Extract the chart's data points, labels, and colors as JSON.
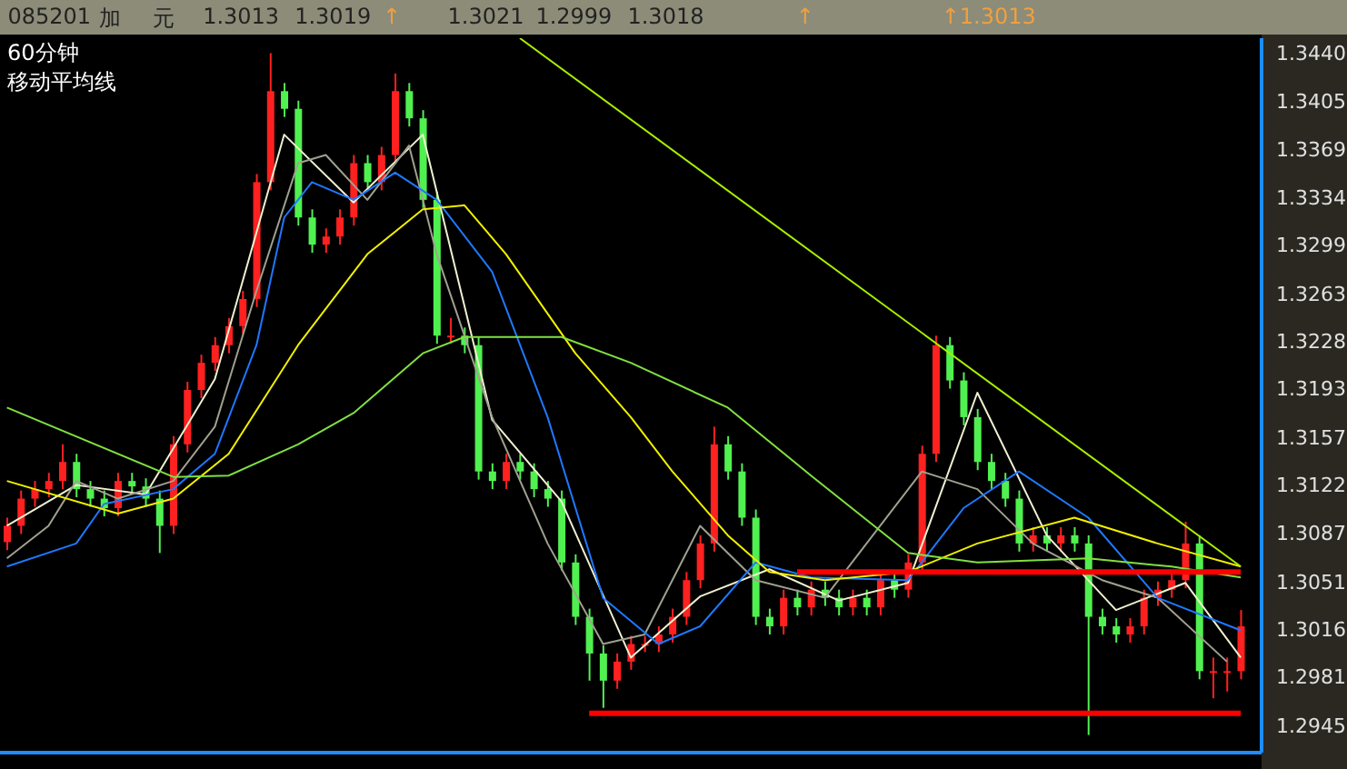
{
  "chart_data": {
    "type": "candlestick",
    "title": "60分钟",
    "subtitle": "移动平均线",
    "annotations": [
      "085201",
      "加",
      "元",
      "1.3013",
      "1.3019",
      "↑",
      "1.3021",
      "1.2999",
      "1.3018",
      "↑",
      "↑1.3013"
    ],
    "categories": [
      null,
      null,
      null,
      null,
      null,
      null,
      null,
      null,
      null,
      null,
      null,
      null,
      null,
      null,
      null,
      null,
      null,
      null,
      null,
      null,
      null,
      null,
      null,
      null,
      null,
      null,
      null,
      null,
      null,
      null,
      null,
      null,
      null,
      null,
      null,
      null,
      null,
      null,
      null,
      null,
      null,
      null,
      null,
      null,
      null,
      null,
      null,
      null,
      null,
      null,
      null,
      null,
      null,
      null,
      null,
      null,
      null,
      null,
      null,
      null,
      null,
      null,
      null,
      null,
      null,
      null,
      null,
      null,
      null,
      null,
      null,
      null,
      null,
      null,
      null,
      null,
      null,
      null,
      null,
      null,
      null,
      null,
      null,
      null,
      null,
      null,
      null,
      null,
      null,
      null
    ],
    "ohlc": [
      [
        1.308,
        1.3098,
        1.3074,
        1.3092
      ],
      [
        1.3092,
        1.3118,
        1.3086,
        1.3112
      ],
      [
        1.3112,
        1.3125,
        1.3106,
        1.3119
      ],
      [
        1.3119,
        1.3131,
        1.3113,
        1.3125
      ],
      [
        1.3125,
        1.3152,
        1.3119,
        1.3139
      ],
      [
        1.3139,
        1.3145,
        1.3113,
        1.3119
      ],
      [
        1.3119,
        1.3125,
        1.3106,
        1.3112
      ],
      [
        1.3112,
        1.3118,
        1.3099,
        1.3105
      ],
      [
        1.3105,
        1.3131,
        1.3099,
        1.3125
      ],
      [
        1.3125,
        1.3131,
        1.3115,
        1.3121
      ],
      [
        1.3121,
        1.3127,
        1.3106,
        1.3112
      ],
      [
        1.3112,
        1.3118,
        1.3072,
        1.3092
      ],
      [
        1.3092,
        1.3158,
        1.3086,
        1.3152
      ],
      [
        1.3152,
        1.3198,
        1.3146,
        1.3192
      ],
      [
        1.3192,
        1.3218,
        1.3186,
        1.3212
      ],
      [
        1.3212,
        1.3231,
        1.3206,
        1.3225
      ],
      [
        1.3225,
        1.3245,
        1.3219,
        1.3239
      ],
      [
        1.3239,
        1.3265,
        1.3233,
        1.3259
      ],
      [
        1.3259,
        1.3351,
        1.3253,
        1.3345
      ],
      [
        1.3345,
        1.344,
        1.3339,
        1.3412
      ],
      [
        1.3412,
        1.3418,
        1.3393,
        1.3399
      ],
      [
        1.3399,
        1.3405,
        1.3313,
        1.3319
      ],
      [
        1.3319,
        1.3325,
        1.3293,
        1.3299
      ],
      [
        1.3299,
        1.3311,
        1.3293,
        1.3305
      ],
      [
        1.3305,
        1.3325,
        1.3299,
        1.3319
      ],
      [
        1.3319,
        1.3365,
        1.3313,
        1.3359
      ],
      [
        1.3359,
        1.3365,
        1.3339,
        1.3345
      ],
      [
        1.3345,
        1.3371,
        1.3339,
        1.3365
      ],
      [
        1.3365,
        1.3425,
        1.3359,
        1.3412
      ],
      [
        1.3412,
        1.3418,
        1.3386,
        1.3392
      ],
      [
        1.3392,
        1.3398,
        1.3326,
        1.3332
      ],
      [
        1.3332,
        1.3338,
        1.3226,
        1.3232
      ],
      [
        1.3232,
        1.3245,
        1.3226,
        1.3232
      ],
      [
        1.3232,
        1.3238,
        1.3219,
        1.3225
      ],
      [
        1.3225,
        1.3231,
        1.3126,
        1.3132
      ],
      [
        1.3132,
        1.3138,
        1.3119,
        1.3125
      ],
      [
        1.3125,
        1.3145,
        1.3119,
        1.3139
      ],
      [
        1.3139,
        1.3145,
        1.3126,
        1.3132
      ],
      [
        1.3132,
        1.3138,
        1.3113,
        1.3119
      ],
      [
        1.3119,
        1.3125,
        1.3106,
        1.3112
      ],
      [
        1.3112,
        1.3118,
        1.3059,
        1.3065
      ],
      [
        1.3065,
        1.3071,
        1.3019,
        1.3025
      ],
      [
        1.3025,
        1.3031,
        1.2978,
        1.2998
      ],
      [
        1.2998,
        1.3004,
        1.2958,
        1.2978
      ],
      [
        1.2978,
        1.2998,
        1.2972,
        1.2992
      ],
      [
        1.2992,
        1.3011,
        1.2986,
        1.3005
      ],
      [
        1.3005,
        1.3011,
        1.2999,
        1.3005
      ],
      [
        1.3005,
        1.3018,
        1.2999,
        1.3012
      ],
      [
        1.3012,
        1.3031,
        1.3006,
        1.3025
      ],
      [
        1.3025,
        1.3058,
        1.3019,
        1.3052
      ],
      [
        1.3052,
        1.3085,
        1.3046,
        1.3079
      ],
      [
        1.3079,
        1.3165,
        1.3073,
        1.3152
      ],
      [
        1.3152,
        1.3158,
        1.3126,
        1.3132
      ],
      [
        1.3132,
        1.3138,
        1.3092,
        1.3098
      ],
      [
        1.3098,
        1.3104,
        1.3019,
        1.3025
      ],
      [
        1.3025,
        1.3031,
        1.3012,
        1.3018
      ],
      [
        1.3018,
        1.3045,
        1.3012,
        1.3039
      ],
      [
        1.3039,
        1.3045,
        1.3026,
        1.3032
      ],
      [
        1.3032,
        1.3051,
        1.3026,
        1.3045
      ],
      [
        1.3045,
        1.3051,
        1.3033,
        1.3039
      ],
      [
        1.3039,
        1.3045,
        1.3026,
        1.3032
      ],
      [
        1.3032,
        1.3045,
        1.3026,
        1.3039
      ],
      [
        1.3039,
        1.3045,
        1.3026,
        1.3032
      ],
      [
        1.3032,
        1.3058,
        1.3026,
        1.3052
      ],
      [
        1.3052,
        1.3058,
        1.3039,
        1.3045
      ],
      [
        1.3045,
        1.3071,
        1.3039,
        1.3065
      ],
      [
        1.3065,
        1.3151,
        1.3059,
        1.3145
      ],
      [
        1.3145,
        1.3232,
        1.3139,
        1.3225
      ],
      [
        1.3225,
        1.3231,
        1.3193,
        1.3199
      ],
      [
        1.3199,
        1.3205,
        1.3166,
        1.3172
      ],
      [
        1.3172,
        1.3178,
        1.3133,
        1.3139
      ],
      [
        1.3139,
        1.3145,
        1.3119,
        1.3125
      ],
      [
        1.3125,
        1.3131,
        1.3106,
        1.3112
      ],
      [
        1.3112,
        1.3118,
        1.3073,
        1.3079
      ],
      [
        1.3079,
        1.3091,
        1.3073,
        1.3085
      ],
      [
        1.3085,
        1.3091,
        1.3073,
        1.3079
      ],
      [
        1.3079,
        1.3091,
        1.3073,
        1.3085
      ],
      [
        1.3085,
        1.3091,
        1.3073,
        1.3079
      ],
      [
        1.3079,
        1.3085,
        1.2938,
        1.3025
      ],
      [
        1.3025,
        1.3031,
        1.3012,
        1.3018
      ],
      [
        1.3018,
        1.3024,
        1.3006,
        1.3012
      ],
      [
        1.3012,
        1.3024,
        1.3006,
        1.3018
      ],
      [
        1.3018,
        1.3045,
        1.3012,
        1.3039
      ],
      [
        1.3039,
        1.3051,
        1.3033,
        1.3045
      ],
      [
        1.3045,
        1.3058,
        1.3039,
        1.3052
      ],
      [
        1.3052,
        1.3095,
        1.3046,
        1.3079
      ],
      [
        1.3079,
        1.3085,
        1.2979,
        1.2985
      ],
      [
        1.2985,
        1.2995,
        1.2965,
        1.2985
      ],
      [
        1.2985,
        1.2995,
        1.297,
        1.2985
      ],
      [
        1.2985,
        1.303,
        1.2979,
        1.3018
      ]
    ],
    "colors": [
      "#ff2020",
      "#ff2020",
      "#ff2020",
      "#ff2020",
      "#ff2020",
      "#50f050",
      "#50f050",
      "#50f050",
      "#ff2020",
      "#50f050",
      "#50f050",
      "#50f050",
      "#ff2020",
      "#ff2020",
      "#ff2020",
      "#ff2020",
      "#ff2020",
      "#ff2020",
      "#ff2020",
      "#ff2020",
      "#50f050",
      "#50f050",
      "#50f050",
      "#ff2020",
      "#ff2020",
      "#ff2020",
      "#50f050",
      "#ff2020",
      "#ff2020",
      "#50f050",
      "#50f050",
      "#50f050",
      "#ff2020",
      "#50f050",
      "#50f050",
      "#50f050",
      "#ff2020",
      "#50f050",
      "#50f050",
      "#50f050",
      "#50f050",
      "#50f050",
      "#50f050",
      "#50f050",
      "#ff2020",
      "#ff2020",
      "#ff2020",
      "#ff2020",
      "#ff2020",
      "#ff2020",
      "#ff2020",
      "#ff2020",
      "#50f050",
      "#50f050",
      "#50f050",
      "#50f050",
      "#ff2020",
      "#50f050",
      "#ff2020",
      "#50f050",
      "#50f050",
      "#ff2020",
      "#50f050",
      "#ff2020",
      "#50f050",
      "#ff2020",
      "#ff2020",
      "#ff2020",
      "#50f050",
      "#50f050",
      "#50f050",
      "#50f050",
      "#50f050",
      "#50f050",
      "#ff2020",
      "#50f050",
      "#ff2020",
      "#50f050",
      "#50f050",
      "#50f050",
      "#50f050",
      "#ff2020",
      "#ff2020",
      "#ff2020",
      "#ff2020",
      "#ff2020",
      "#50f050",
      "#ff2020",
      "#ff2020",
      "#ff2020"
    ],
    "series": [
      {
        "type": "line",
        "color": "#f0f0d0",
        "values": [
          1.3092,
          null,
          null,
          null,
          null,
          1.3122,
          null,
          null,
          null,
          null,
          1.3115,
          null,
          null,
          null,
          null,
          1.32,
          null,
          null,
          null,
          null,
          1.338,
          null,
          null,
          null,
          null,
          1.333,
          null,
          null,
          null,
          null,
          1.338,
          null,
          null,
          null,
          null,
          1.317,
          null,
          null,
          null,
          null,
          1.311,
          null,
          null,
          null,
          null,
          1.2995,
          null,
          null,
          null,
          null,
          1.304,
          null,
          null,
          null,
          null,
          1.306,
          null,
          null,
          null,
          null,
          1.3037,
          null,
          null,
          null,
          null,
          1.305,
          null,
          null,
          null,
          null,
          1.319,
          null,
          null,
          null,
          null,
          1.3085,
          null,
          null,
          null,
          null,
          1.303,
          null,
          null,
          null,
          null,
          1.305,
          null,
          null,
          null,
          1.2995
        ]
      },
      {
        "type": "line",
        "color": "#a0a090",
        "values": [
          1.3068,
          null,
          null,
          1.3092,
          null,
          1.3125,
          null,
          null,
          1.3112,
          null,
          null,
          null,
          1.3125,
          null,
          null,
          1.3165,
          null,
          null,
          1.3265,
          null,
          null,
          1.3359,
          null,
          1.3365,
          null,
          null,
          1.3332,
          null,
          null,
          1.3372,
          null,
          1.3292,
          null,
          null,
          null,
          1.3172,
          null,
          null,
          null,
          1.3079,
          null,
          null,
          null,
          1.3005,
          null,
          null,
          1.3012,
          null,
          null,
          null,
          1.3092,
          null,
          null,
          null,
          1.3052,
          null,
          null,
          null,
          null,
          1.3039,
          null,
          null,
          null,
          null,
          null,
          null,
          1.3132,
          null,
          null,
          null,
          1.3119,
          null,
          null,
          null,
          1.3079,
          null,
          null,
          null,
          null,
          1.3052,
          null,
          null,
          null,
          1.3039,
          null,
          null,
          null,
          null,
          1.2992,
          null
        ]
      },
      {
        "type": "line",
        "color": "#1e78ff",
        "values": [
          1.3062,
          null,
          null,
          null,
          null,
          1.3079,
          null,
          1.3108,
          null,
          null,
          null,
          null,
          1.3119,
          null,
          null,
          1.3145,
          null,
          null,
          1.3225,
          null,
          1.3319,
          null,
          1.3345,
          null,
          null,
          1.3332,
          null,
          null,
          1.3352,
          null,
          null,
          1.3332,
          null,
          null,
          null,
          1.3279,
          null,
          null,
          null,
          1.3172,
          null,
          null,
          null,
          1.3039,
          null,
          null,
          null,
          1.3005,
          null,
          null,
          1.3018,
          null,
          null,
          null,
          1.3065,
          null,
          null,
          null,
          1.3054,
          null,
          null,
          null,
          null,
          null,
          null,
          1.3052,
          null,
          null,
          null,
          1.3105,
          null,
          null,
          null,
          1.3132,
          null,
          null,
          null,
          null,
          1.3098,
          null,
          null,
          null,
          null,
          1.3039,
          null,
          null,
          null,
          null,
          null,
          1.3015
        ]
      },
      {
        "type": "line",
        "color": "#f0f000",
        "values": [
          1.3125,
          null,
          null,
          null,
          null,
          null,
          null,
          null,
          1.3101,
          null,
          null,
          null,
          1.3112,
          null,
          null,
          null,
          1.3145,
          null,
          null,
          null,
          null,
          1.3225,
          null,
          null,
          null,
          null,
          1.3292,
          null,
          null,
          null,
          1.3325,
          null,
          null,
          1.3328,
          null,
          null,
          1.3292,
          null,
          null,
          null,
          null,
          1.3219,
          null,
          null,
          null,
          1.3172,
          null,
          null,
          1.3132,
          null,
          null,
          null,
          1.3085,
          null,
          null,
          1.3058,
          null,
          null,
          null,
          1.3052,
          null,
          null,
          null,
          null,
          null,
          1.3058,
          null,
          null,
          null,
          null,
          1.3079,
          null,
          null,
          null,
          null,
          null,
          null,
          1.3098,
          null,
          null,
          null,
          null,
          null,
          1.3079,
          null,
          null,
          null,
          null,
          null,
          1.3062
        ]
      },
      {
        "type": "line",
        "color": "#80e040",
        "values": [
          1.3179,
          null,
          null,
          null,
          null,
          null,
          null,
          null,
          null,
          null,
          null,
          null,
          1.3128,
          null,
          null,
          null,
          1.3129,
          null,
          null,
          null,
          null,
          1.3152,
          null,
          null,
          null,
          1.3175,
          null,
          null,
          null,
          null,
          1.3219,
          null,
          null,
          1.3231,
          null,
          null,
          null,
          null,
          null,
          null,
          1.3231,
          null,
          null,
          null,
          null,
          1.3212,
          null,
          null,
          null,
          null,
          null,
          null,
          1.3179,
          null,
          null,
          null,
          null,
          null,
          1.3129,
          null,
          null,
          null,
          null,
          null,
          null,
          1.3072,
          null,
          null,
          null,
          null,
          1.3065,
          null,
          null,
          null,
          null,
          null,
          null,
          null,
          1.3068,
          null,
          null,
          null,
          null,
          null,
          1.3062,
          null,
          null,
          null,
          null,
          1.3054
        ]
      },
      {
        "type": "line",
        "color": "#a8f000",
        "values": [
          null,
          null,
          null,
          null,
          null,
          null,
          null,
          null,
          null,
          null,
          null,
          null,
          null,
          null,
          null,
          null,
          null,
          null,
          null,
          null,
          null,
          null,
          null,
          null,
          null,
          null,
          null,
          null,
          null,
          null,
          null,
          null,
          null,
          null,
          null,
          null,
          null,
          1.3451,
          null,
          null,
          null,
          null,
          null,
          null,
          null,
          null,
          null,
          null,
          null,
          null,
          null,
          null,
          null,
          null,
          null,
          null,
          null,
          null,
          null,
          null,
          null,
          null,
          null,
          null,
          null,
          null,
          null,
          null,
          null,
          null,
          null,
          null,
          null,
          null,
          null,
          null,
          null,
          null,
          null,
          null,
          null,
          null,
          null,
          null,
          null,
          null,
          null,
          null,
          null,
          1.3062
        ]
      },
      {
        "type": "line",
        "color": "#ff0000",
        "values": [
          null,
          null,
          null,
          null,
          null,
          null,
          null,
          null,
          null,
          null,
          null,
          null,
          null,
          null,
          null,
          null,
          null,
          null,
          null,
          null,
          null,
          null,
          null,
          null,
          null,
          null,
          null,
          null,
          null,
          null,
          null,
          null,
          null,
          null,
          null,
          null,
          null,
          null,
          null,
          null,
          null,
          null,
          null,
          null,
          null,
          null,
          null,
          null,
          null,
          null,
          null,
          null,
          null,
          null,
          null,
          null,
          null,
          1.3058,
          null,
          null,
          null,
          null,
          null,
          null,
          null,
          null,
          null,
          null,
          null,
          null,
          null,
          null,
          null,
          null,
          null,
          null,
          null,
          null,
          null,
          null,
          null,
          null,
          null,
          null,
          null,
          null,
          null,
          null,
          null,
          1.3058
        ]
      },
      {
        "type": "line",
        "color": "#ff0000",
        "values": [
          null,
          null,
          null,
          null,
          null,
          null,
          null,
          null,
          null,
          null,
          null,
          null,
          null,
          null,
          null,
          null,
          null,
          null,
          null,
          null,
          null,
          null,
          null,
          null,
          null,
          null,
          null,
          null,
          null,
          null,
          null,
          null,
          null,
          null,
          null,
          null,
          null,
          null,
          null,
          null,
          null,
          null,
          1.2954,
          null,
          null,
          null,
          null,
          null,
          null,
          null,
          null,
          null,
          null,
          null,
          null,
          null,
          null,
          null,
          null,
          null,
          null,
          null,
          null,
          null,
          null,
          null,
          null,
          null,
          null,
          null,
          null,
          null,
          null,
          null,
          null,
          null,
          null,
          null,
          null,
          null,
          null,
          null,
          null,
          null,
          null,
          null,
          null,
          null,
          null,
          1.2954
        ]
      }
    ],
    "ylim": [
      1.2925,
      1.3451
    ],
    "yticks": [
      {
        "value": 1.344,
        "label": "1.3440"
      },
      1.3405,
      1.3369,
      1.3334,
      1.3299,
      1.3263,
      1.3228,
      1.3193,
      1.3157,
      1.3122,
      1.3087,
      1.3051,
      1.3016,
      1.2981,
      1.2945
    ],
    "tick_labels": "y"
  }
}
